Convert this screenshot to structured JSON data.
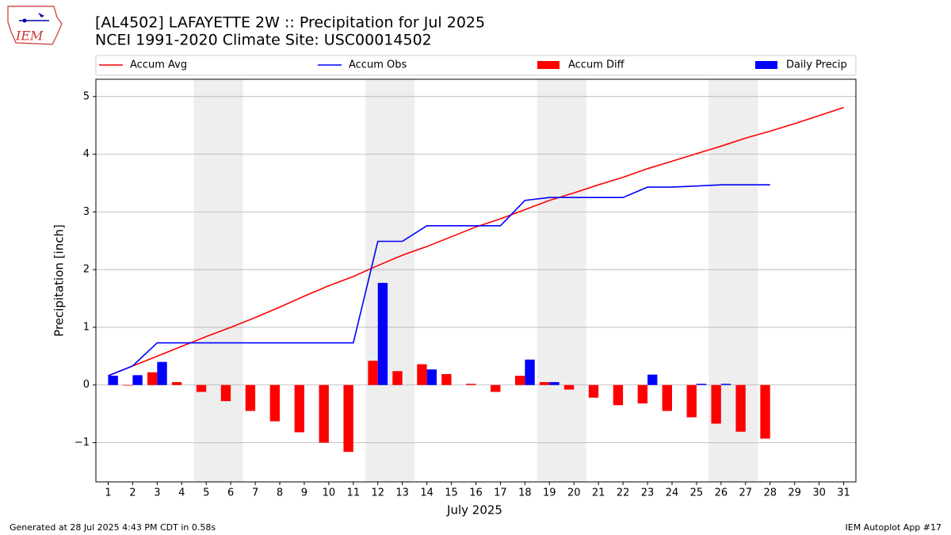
{
  "header": {
    "footer_left": "Generated at 28 Jul 2025 4:43 PM CDT in 0.58s",
    "footer_right": "IEM Autoplot App #17",
    "logo": "IEM"
  },
  "chart_data": {
    "type": "combo",
    "title": "[AL4502] LAFAYETTE 2W :: Precipitation for Jul 2025",
    "subtitle": "NCEI 1991-2020 Climate Site: USC00014502",
    "xlabel": "July 2025",
    "ylabel": "Precipitation [inch]",
    "x": [
      1,
      2,
      3,
      4,
      5,
      6,
      7,
      8,
      9,
      10,
      11,
      12,
      13,
      14,
      15,
      16,
      17,
      18,
      19,
      20,
      21,
      22,
      23,
      24,
      25,
      26,
      27,
      28,
      29,
      30,
      31
    ],
    "xlim": [
      0.5,
      31.5
    ],
    "xticks": [
      1,
      2,
      3,
      4,
      5,
      6,
      7,
      8,
      9,
      10,
      11,
      12,
      13,
      14,
      15,
      16,
      17,
      18,
      19,
      20,
      21,
      22,
      23,
      24,
      25,
      26,
      27,
      28,
      29,
      30,
      31
    ],
    "ylim": [
      -1.68,
      5.3
    ],
    "yticks": [
      {
        "value": -1,
        "label": "−1"
      },
      0,
      1,
      2,
      3,
      4,
      5
    ],
    "grid": true,
    "shaded_spans": [
      [
        4.5,
        6.5
      ],
      [
        11.5,
        13.5
      ],
      [
        18.5,
        20.5
      ],
      [
        25.5,
        27.5
      ]
    ],
    "shade_color": "#eeeeee",
    "series": [
      {
        "name": "Accum Avg",
        "type": "line",
        "color": "#ff0000",
        "values": [
          0.16,
          0.33,
          0.5,
          0.67,
          0.84,
          1.0,
          1.17,
          1.35,
          1.54,
          1.72,
          1.88,
          2.07,
          2.25,
          2.4,
          2.57,
          2.74,
          2.88,
          3.04,
          3.2,
          3.33,
          3.47,
          3.6,
          3.75,
          3.88,
          4.01,
          4.14,
          4.28,
          4.4,
          4.53,
          4.67,
          4.81
        ]
      },
      {
        "name": "Accum Obs",
        "type": "line",
        "color": "#0000ff",
        "values": [
          0.16,
          0.33,
          0.73,
          0.73,
          0.73,
          0.73,
          0.73,
          0.73,
          0.73,
          0.73,
          0.73,
          2.49,
          2.49,
          2.76,
          2.76,
          2.76,
          2.76,
          3.2,
          3.25,
          3.25,
          3.25,
          3.25,
          3.43,
          3.43,
          3.45,
          3.47,
          3.47,
          3.47,
          null,
          null,
          null
        ]
      },
      {
        "name": "Accum Diff",
        "type": "bar",
        "color": "#ff0000",
        "offset": -0.4,
        "width": 0.4,
        "values": [
          0,
          -0.01,
          0.22,
          0.05,
          -0.12,
          -0.28,
          -0.45,
          -0.63,
          -0.82,
          -1.0,
          -1.16,
          0.42,
          0.24,
          0.36,
          0.19,
          0.02,
          -0.12,
          0.16,
          0.05,
          -0.08,
          -0.22,
          -0.35,
          -0.32,
          -0.45,
          -0.56,
          -0.67,
          -0.81,
          -0.93,
          null,
          null,
          null
        ]
      },
      {
        "name": "Daily Precip",
        "type": "bar",
        "color": "#0000ff",
        "offset": 0,
        "width": 0.4,
        "values": [
          0.16,
          0.17,
          0.4,
          0,
          0,
          0,
          0,
          0,
          0,
          0,
          0,
          1.77,
          0,
          0.27,
          0,
          0,
          0,
          0.44,
          0.05,
          0,
          0,
          0,
          0.18,
          0,
          0.02,
          0.02,
          0,
          0,
          null,
          null,
          null
        ]
      }
    ]
  }
}
